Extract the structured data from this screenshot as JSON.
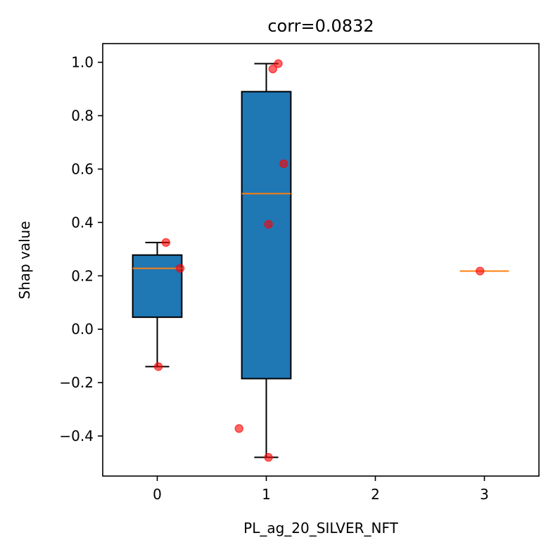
{
  "chart_data": {
    "type": "box",
    "title": "corr=0.0832",
    "xlabel": "PL_ag_20_SILVER_NFT",
    "ylabel": "Shap value",
    "xlim": [
      -0.5,
      3.5
    ],
    "ylim": [
      -0.55,
      1.07
    ],
    "x_ticks": [
      0,
      1,
      2,
      3
    ],
    "x_tick_labels": [
      "0",
      "1",
      "2",
      "3"
    ],
    "y_ticks": [
      -0.4,
      -0.2,
      0.0,
      0.2,
      0.4,
      0.6,
      0.8,
      1.0
    ],
    "y_tick_labels": [
      "−0.4",
      "−0.2",
      "0.0",
      "0.2",
      "0.4",
      "0.6",
      "0.8",
      "1.0"
    ],
    "grid": false,
    "colors": {
      "box_fill": "#1f77b4",
      "median": "#ff7f0e",
      "points": "#ff0000",
      "outline": "#000000"
    },
    "boxes": [
      {
        "category": 0,
        "whisker_low": -0.14,
        "q1": 0.045,
        "median": 0.228,
        "q3": 0.278,
        "whisker_high": 0.325
      },
      {
        "category": 1,
        "whisker_low": -0.48,
        "q1": -0.185,
        "median": 0.508,
        "q3": 0.89,
        "whisker_high": 0.995
      },
      {
        "category": 3,
        "whisker_low": 0.218,
        "q1": 0.218,
        "median": 0.218,
        "q3": 0.218,
        "whisker_high": 0.218
      }
    ],
    "points": [
      {
        "x": 0.01,
        "y": -0.14
      },
      {
        "x": 0.08,
        "y": 0.325
      },
      {
        "x": 0.21,
        "y": 0.228
      },
      {
        "x": 0.75,
        "y": -0.372
      },
      {
        "x": 1.02,
        "y": -0.48
      },
      {
        "x": 1.02,
        "y": 0.393
      },
      {
        "x": 1.06,
        "y": 0.975
      },
      {
        "x": 1.11,
        "y": 0.995
      },
      {
        "x": 1.16,
        "y": 0.62
      },
      {
        "x": 2.96,
        "y": 0.218
      }
    ]
  }
}
